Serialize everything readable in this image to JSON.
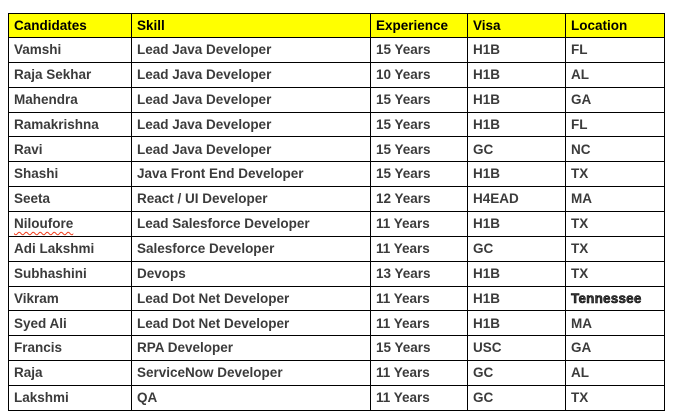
{
  "document": {
    "background": "#ffffff"
  },
  "table": {
    "header_bg": "#ffff00",
    "border_color": "#000000",
    "body_text_color": "#3b3b3b",
    "spellcheck_underline_color": "#f03a17",
    "columns": [
      "Candidates",
      "Skill",
      "Experience",
      "Visa",
      "Location"
    ],
    "rows": [
      {
        "candidate": "Vamshi",
        "skill": "Lead Java Developer",
        "experience": "15 Years",
        "visa": "H1B",
        "location": "FL"
      },
      {
        "candidate": "Raja Sekhar",
        "skill": "Lead Java Developer",
        "experience": "10 Years",
        "visa": "H1B",
        "location": "AL"
      },
      {
        "candidate": "Mahendra",
        "skill": "Lead Java Developer",
        "experience": "15 Years",
        "visa": "H1B",
        "location": "GA"
      },
      {
        "candidate": "Ramakrishna",
        "skill": "Lead Java Developer",
        "experience": "15 Years",
        "visa": "H1B",
        "location": "FL"
      },
      {
        "candidate": "Ravi",
        "skill": "Lead Java Developer",
        "experience": "15 Years",
        "visa": "GC",
        "location": "NC"
      },
      {
        "candidate": "Shashi",
        "skill": "Java Front End Developer",
        "experience": "15 Years",
        "visa": "H1B",
        "location": "TX"
      },
      {
        "candidate": "Seeta",
        "skill": "React / UI Developer",
        "experience": "12 Years",
        "visa": "H4EAD",
        "location": "MA"
      },
      {
        "candidate": "Niloufore",
        "skill": "Lead Salesforce Developer",
        "experience": "11 Years",
        "visa": "H1B",
        "location": "TX",
        "candidate_spellcheck": true
      },
      {
        "candidate": "Adi Lakshmi",
        "skill": "Salesforce Developer",
        "experience": "11 Years",
        "visa": "GC",
        "location": "TX"
      },
      {
        "candidate": "Subhashini",
        "skill": "Devops",
        "experience": "13 Years",
        "visa": "H1B",
        "location": "TX"
      },
      {
        "candidate": "Vikram",
        "skill": "Lead Dot Net Developer",
        "experience": "11 Years",
        "visa": "H1B",
        "location": "Tennessee",
        "location_emphasis": true
      },
      {
        "candidate": "Syed Ali",
        "skill": "Lead Dot Net Developer",
        "experience": "11 Years",
        "visa": "H1B",
        "location": "MA"
      },
      {
        "candidate": "Francis",
        "skill": "RPA Developer",
        "experience": "15 Years",
        "visa": "USC",
        "location": "GA"
      },
      {
        "candidate": "Raja",
        "skill": "ServiceNow Developer",
        "experience": "11 Years",
        "visa": "GC",
        "location": "AL"
      },
      {
        "candidate": "Lakshmi",
        "skill": "QA",
        "experience": "11 Years",
        "visa": "GC",
        "location": "TX"
      }
    ]
  }
}
